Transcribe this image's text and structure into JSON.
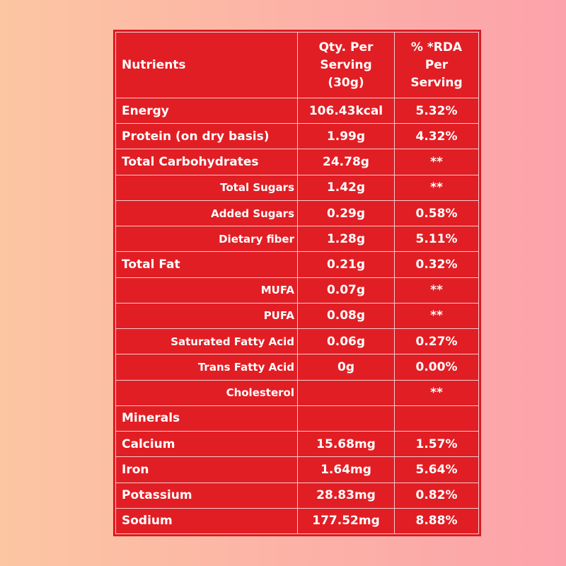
{
  "table": {
    "header": [
      "Nutrients",
      "Qty. Per Serving (30g)",
      "% *RDA Per Serving"
    ],
    "rows": [
      {
        "nutrient": "Energy",
        "qty": "106.43kcal",
        "rda": "5.32%"
      },
      {
        "nutrient": "Protein (on dry basis)",
        "qty": "1.99g",
        "rda": "4.32%"
      },
      {
        "nutrient": "Total Carbohydrates",
        "qty": "24.78g",
        "rda": "**",
        "items": [
          {
            "nutrient": "Total Sugars",
            "qty": "1.42g",
            "rda": "**"
          },
          {
            "nutrient": "Added Sugars",
            "qty": "0.29g",
            "rda": "0.58%"
          },
          {
            "nutrient": "Dietary fiber",
            "qty": "1.28g",
            "rda": "5.11%"
          }
        ]
      },
      {
        "nutrient": "Total Fat",
        "qty": "0.21g",
        "rda": "0.32%",
        "items": [
          {
            "nutrient": "MUFA",
            "qty": "0.07g",
            "rda": "**"
          },
          {
            "nutrient": "PUFA",
            "qty": "0.08g",
            "rda": "**"
          },
          {
            "nutrient": "Saturated Fatty Acid",
            "qty": "0.06g",
            "rda": "0.27%"
          },
          {
            "nutrient": "Trans Fatty Acid",
            "qty": "0g",
            "rda": "0.00%"
          },
          {
            "nutrient": "Cholesterol",
            "rda": "**"
          }
        ]
      },
      {
        "nutrient": "Minerals"
      },
      {
        "nutrient": "Calcium",
        "qty": "15.68mg",
        "rda": "1.57%"
      },
      {
        "nutrient": "Iron",
        "qty": "1.64mg",
        "rda": "5.64%"
      },
      {
        "nutrient": "Potassium",
        "qty": "28.83mg",
        "rda": "0.82%"
      },
      {
        "nutrient": "Sodium",
        "qty": "177.52mg",
        "rda": "8.88%"
      }
    ]
  }
}
